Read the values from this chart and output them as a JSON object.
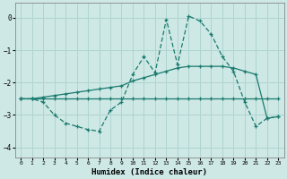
{
  "xlabel": "Humidex (Indice chaleur)",
  "xlim": [
    -0.5,
    23.5
  ],
  "ylim": [
    -4.3,
    0.45
  ],
  "yticks": [
    0,
    -1,
    -2,
    -3,
    -4
  ],
  "xticks": [
    0,
    1,
    2,
    3,
    4,
    5,
    6,
    7,
    8,
    9,
    10,
    11,
    12,
    13,
    14,
    15,
    16,
    17,
    18,
    19,
    20,
    21,
    22,
    23
  ],
  "bg_color": "#cde8e5",
  "grid_color": "#b0d4d0",
  "line_color": "#1a7a6e",
  "line1_x": [
    0,
    1,
    2,
    3,
    4,
    5,
    6,
    7,
    8,
    9,
    10,
    11,
    12,
    13,
    14,
    15,
    16,
    17,
    18,
    19,
    20,
    21,
    22,
    23
  ],
  "line1_y": [
    -2.5,
    -2.5,
    -2.5,
    -2.5,
    -2.5,
    -2.5,
    -2.5,
    -2.5,
    -2.5,
    -2.5,
    -2.5,
    -2.5,
    -2.5,
    -2.5,
    -2.5,
    -2.5,
    -2.5,
    -2.5,
    -2.5,
    -2.5,
    -2.5,
    -2.5,
    -2.5,
    -2.5
  ],
  "line2_x": [
    0,
    1,
    2,
    3,
    4,
    5,
    6,
    7,
    8,
    9,
    10,
    11,
    12,
    13,
    14,
    15,
    16,
    17,
    18,
    19,
    20,
    21,
    22,
    23
  ],
  "line2_y": [
    -2.5,
    -2.5,
    -2.6,
    -3.0,
    -3.25,
    -3.35,
    -3.45,
    -3.5,
    -2.85,
    -2.6,
    -1.75,
    -1.2,
    -1.7,
    -0.05,
    -1.45,
    0.05,
    -0.1,
    -0.5,
    -1.2,
    -1.65,
    -2.6,
    -3.35,
    -3.1,
    -3.05
  ],
  "line3_x": [
    0,
    1,
    2,
    3,
    4,
    5,
    6,
    7,
    8,
    9,
    10,
    11,
    12,
    13,
    14,
    15,
    16,
    17,
    18,
    19,
    20,
    21,
    22,
    23
  ],
  "line3_y": [
    -2.5,
    -2.5,
    -2.45,
    -2.4,
    -2.35,
    -2.3,
    -2.25,
    -2.2,
    -2.15,
    -2.1,
    -1.95,
    -1.85,
    -1.75,
    -1.65,
    -1.55,
    -1.5,
    -1.5,
    -1.5,
    -1.5,
    -1.55,
    -1.65,
    -1.75,
    -3.1,
    -3.05
  ]
}
